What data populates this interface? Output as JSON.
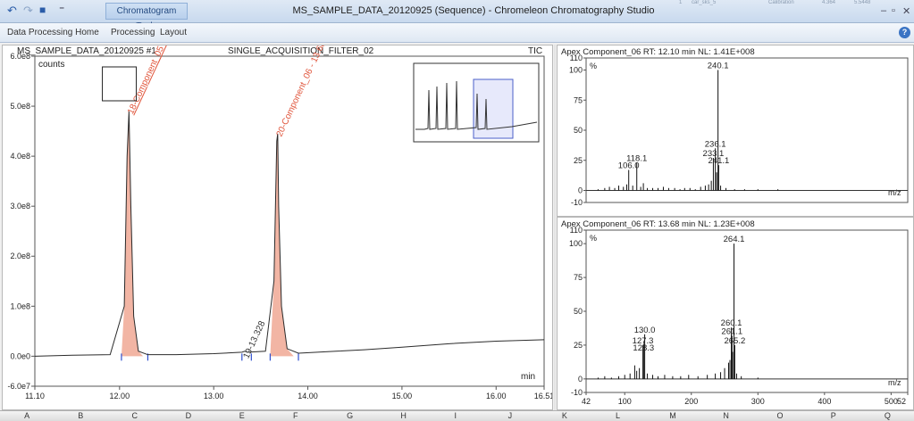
{
  "app": {
    "window_title": "MS_SAMPLE_DATA_20120925 (Sequence) - Chromeleon Chromatography Studio",
    "context_tab": "Chromatogram Tools",
    "ribbon_tabs": [
      "Data Processing Home",
      "Processing",
      "Layout"
    ],
    "ghost_row": {
      "a": "1",
      "b": "car_sks_5",
      "c": "Calibration",
      "d": "4.364",
      "e": "5.5448"
    },
    "window_controls": {
      "minimize": "–",
      "restore": "▫",
      "close": "✕"
    },
    "help_label": "?",
    "qa_icons": {
      "undo": "↶",
      "redo": "↷",
      "save": "■",
      "customize": "⁼"
    }
  },
  "chromatogram": {
    "header_left": "MS_SAMPLE_DATA_20120925 #1",
    "header_mid": "SINGLE_ACQUISITION_FILTER_02",
    "header_right": "TIC",
    "yunit": "counts",
    "xunit": "min"
  },
  "colors": {
    "trace": "#2b2b2b",
    "peak_fill": "#f2b5a4",
    "peak_label": "#e0553b",
    "baseline": "#2f4fcf",
    "overview_box": "#4b5fc9",
    "overview_fill": "#e7e9fb"
  },
  "spectrum_top_title": "Apex Component_06  RT: 12.10 min NL: 1.41E+008",
  "spectrum_bottom_title": "Apex Component_06  RT: 13.68 min NL: 1.23E+008",
  "spectrum_ylabel": "%",
  "spectrum_xlabel": "m/z",
  "excel_columns": [
    "A",
    "B",
    "C",
    "D",
    "E",
    "F",
    "G",
    "H",
    "I",
    "J",
    "K",
    "L",
    "M",
    "N",
    "O",
    "P",
    "Q"
  ],
  "chart_data": [
    {
      "type": "line",
      "title": "SINGLE_ACQUISITION_FILTER_02",
      "xlabel": "min",
      "ylabel": "counts",
      "xlim": [
        11.1,
        16.51
      ],
      "ylim": [
        -60000000.0,
        600000000.0
      ],
      "xticks": [
        "11.10",
        "12.00",
        "13.00",
        "14.00",
        "15.00",
        "16.00",
        "16.51"
      ],
      "yticks": [
        "-6.0e7",
        "0.0e0",
        "1.0e8",
        "2.0e8",
        "3.0e8",
        "4.0e8",
        "5.0e8",
        "6.0e8"
      ],
      "peaks": [
        {
          "label": "18-Component_05 - 12.10",
          "rt": 12.1,
          "height": 490000000.0
        },
        {
          "label": "19-13.328",
          "rt": 13.328,
          "height": 5000000.0
        },
        {
          "label": "20-Component_06 - 13.68",
          "rt": 13.68,
          "height": 445000000.0
        }
      ],
      "series": [
        {
          "name": "TIC",
          "x": [
            11.1,
            11.5,
            11.9,
            12.05,
            12.08,
            12.1,
            12.12,
            12.15,
            12.2,
            12.3,
            12.6,
            13.0,
            13.3,
            13.33,
            13.36,
            13.55,
            13.64,
            13.67,
            13.68,
            13.69,
            13.72,
            13.78,
            13.9,
            14.3,
            14.6,
            15.0,
            15.5,
            16.0,
            16.51
          ],
          "y": [
            0.0,
            2000000.0,
            3000000.0,
            100000000.0,
            400000000.0,
            490000000.0,
            300000000.0,
            80000000.0,
            10000000.0,
            3000000.0,
            3000000.0,
            5000000.0,
            8000000.0,
            10000000.0,
            8000000.0,
            10000000.0,
            150000000.0,
            430000000.0,
            445000000.0,
            300000000.0,
            100000000.0,
            15000000.0,
            6000000.0,
            10000000.0,
            13000000.0,
            18000000.0,
            25000000.0,
            30000000.0,
            33000000.0
          ]
        }
      ]
    },
    {
      "type": "bar",
      "title": "Apex Component_06  RT: 12.10 min NL: 1.41E+008",
      "xlabel": "m/z",
      "ylabel": "%",
      "xlim": [
        42,
        525
      ],
      "ylim": [
        -10,
        110
      ],
      "yticks": [
        "-10",
        "0",
        "25",
        "50",
        "75",
        "100",
        "110"
      ],
      "labels": [
        {
          "mz": 240.1,
          "intensity": 100,
          "text": "240.1"
        },
        {
          "mz": 236.1,
          "intensity": 35,
          "text": "236.1"
        },
        {
          "mz": 233.1,
          "intensity": 27,
          "text": "233.1"
        },
        {
          "mz": 241.1,
          "intensity": 21,
          "text": "241.1"
        },
        {
          "mz": 118.1,
          "intensity": 23,
          "text": "118.1"
        },
        {
          "mz": 106.0,
          "intensity": 17,
          "text": "106.0"
        }
      ],
      "peaks": [
        [
          60,
          1
        ],
        [
          70,
          2
        ],
        [
          77,
          3
        ],
        [
          85,
          2
        ],
        [
          91,
          4
        ],
        [
          98,
          3
        ],
        [
          103,
          5
        ],
        [
          106,
          17
        ],
        [
          112,
          4
        ],
        [
          118.1,
          23
        ],
        [
          124,
          3
        ],
        [
          128,
          6
        ],
        [
          134,
          2
        ],
        [
          142,
          2
        ],
        [
          150,
          2
        ],
        [
          158,
          3
        ],
        [
          166,
          2
        ],
        [
          175,
          2
        ],
        [
          183,
          1
        ],
        [
          190,
          2
        ],
        [
          198,
          2
        ],
        [
          206,
          1
        ],
        [
          214,
          3
        ],
        [
          221,
          4
        ],
        [
          226,
          5
        ],
        [
          230,
          8
        ],
        [
          233.1,
          27
        ],
        [
          236.1,
          35
        ],
        [
          238,
          15
        ],
        [
          240.1,
          100
        ],
        [
          241.1,
          21
        ],
        [
          244,
          4
        ],
        [
          252,
          2
        ],
        [
          265,
          1
        ],
        [
          280,
          1
        ],
        [
          300,
          1
        ],
        [
          330,
          1
        ]
      ]
    },
    {
      "type": "bar",
      "title": "Apex Component_06  RT: 13.68 min NL: 1.23E+008",
      "xlabel": "m/z",
      "ylabel": "%",
      "xlim": [
        42,
        525
      ],
      "ylim": [
        -10,
        110
      ],
      "xticks": [
        "42",
        "100",
        "200",
        "300",
        "400",
        "500",
        "52"
      ],
      "yticks": [
        "-10",
        "0",
        "25",
        "50",
        "75",
        "100",
        "110"
      ],
      "labels": [
        {
          "mz": 264.1,
          "intensity": 100,
          "text": "264.1"
        },
        {
          "mz": 130.0,
          "intensity": 33,
          "text": "130.0"
        },
        {
          "mz": 127.3,
          "intensity": 25,
          "text": "127.3"
        },
        {
          "mz": 128.3,
          "intensity": 26,
          "text": "128.3"
        },
        {
          "mz": 260.1,
          "intensity": 38,
          "text": "260.1"
        },
        {
          "mz": 261.1,
          "intensity": 32,
          "text": "261.1"
        },
        {
          "mz": 265.2,
          "intensity": 25,
          "text": "265.2"
        }
      ],
      "peaks": [
        [
          60,
          1
        ],
        [
          70,
          2
        ],
        [
          80,
          1
        ],
        [
          91,
          2
        ],
        [
          100,
          3
        ],
        [
          108,
          4
        ],
        [
          115,
          10
        ],
        [
          118,
          6
        ],
        [
          122,
          8
        ],
        [
          127.3,
          25
        ],
        [
          128.3,
          26
        ],
        [
          130.0,
          33
        ],
        [
          134,
          4
        ],
        [
          142,
          3
        ],
        [
          150,
          2
        ],
        [
          160,
          3
        ],
        [
          172,
          2
        ],
        [
          184,
          2
        ],
        [
          196,
          3
        ],
        [
          210,
          2
        ],
        [
          224,
          3
        ],
        [
          236,
          4
        ],
        [
          244,
          5
        ],
        [
          250,
          8
        ],
        [
          256,
          12
        ],
        [
          258,
          14
        ],
        [
          260.1,
          38
        ],
        [
          261.1,
          32
        ],
        [
          262,
          20
        ],
        [
          264.1,
          100
        ],
        [
          265.2,
          25
        ],
        [
          268,
          4
        ],
        [
          275,
          2
        ],
        [
          300,
          1
        ]
      ]
    }
  ]
}
